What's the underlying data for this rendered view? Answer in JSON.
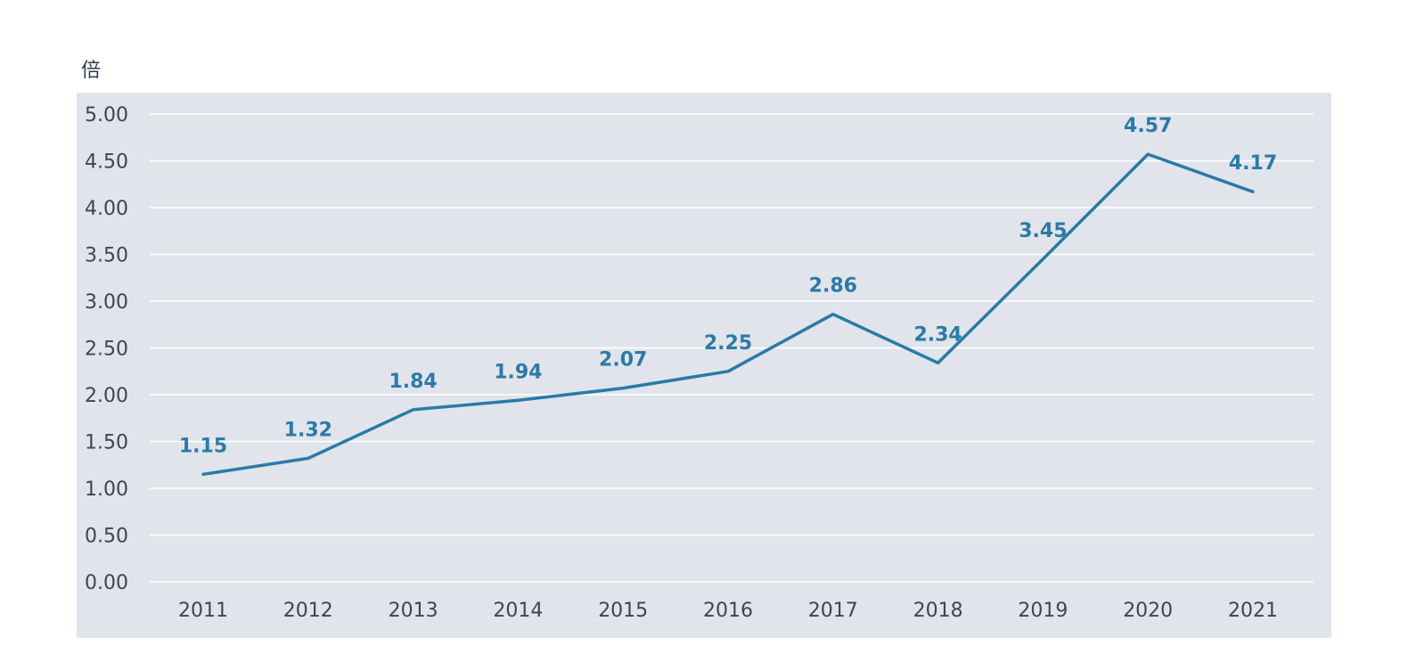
{
  "chart_data": {
    "type": "line",
    "unit_label": "倍",
    "x": [
      "2011",
      "2012",
      "2013",
      "2014",
      "2015",
      "2016",
      "2017",
      "2018",
      "2019",
      "2020",
      "2021"
    ],
    "values": [
      1.15,
      1.32,
      1.84,
      1.94,
      2.07,
      2.25,
      2.86,
      2.34,
      3.45,
      4.57,
      4.17
    ],
    "data_labels": [
      "1.15",
      "1.32",
      "1.84",
      "1.94",
      "2.07",
      "2.25",
      "2.86",
      "2.34",
      "3.45",
      "4.57",
      "4.17"
    ],
    "y_ticks": [
      "0.00",
      "0.50",
      "1.00",
      "1.50",
      "2.00",
      "2.50",
      "3.00",
      "3.50",
      "4.00",
      "4.50",
      "5.00"
    ],
    "ylim": [
      0,
      5
    ],
    "grid": true,
    "legend": "none",
    "colors": {
      "line": "#2a7aa8",
      "plot_background": "#e1e4ea",
      "gridline": "#ffffff",
      "tick_text": "#3b4658"
    }
  }
}
